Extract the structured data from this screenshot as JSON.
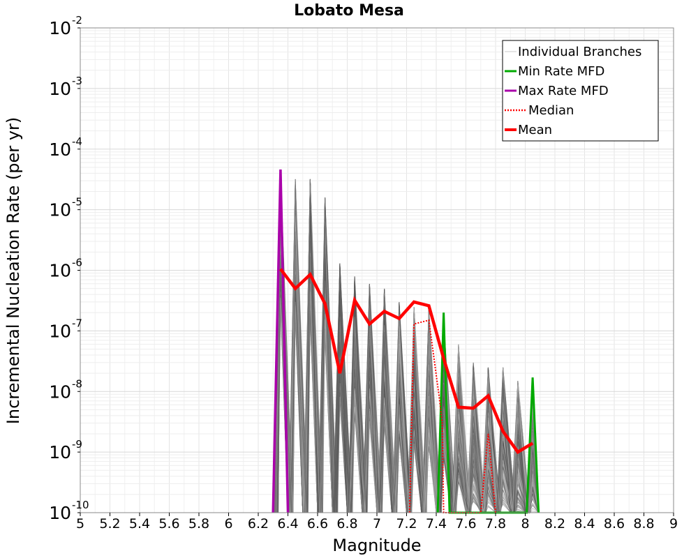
{
  "chart_data": {
    "type": "line",
    "title": "Lobato Mesa",
    "xlabel": "Magnitude",
    "ylabel": "Incremental Nucleation Rate (per yr)",
    "xlim": [
      5,
      9
    ],
    "ylim": [
      1e-10,
      0.01
    ],
    "yscale": "log",
    "xticks": [
      "5",
      "5.2",
      "5.4",
      "5.6",
      "5.8",
      "6",
      "6.2",
      "6.4",
      "6.6",
      "6.8",
      "7",
      "7.2",
      "7.4",
      "7.6",
      "7.8",
      "8",
      "8.2",
      "8.4",
      "8.6",
      "8.8",
      "9"
    ],
    "yticks": [
      {
        "base": "10",
        "exp": "-10",
        "value": 1e-10
      },
      {
        "base": "10",
        "exp": "-9",
        "value": 1e-09
      },
      {
        "base": "10",
        "exp": "-8",
        "value": 1e-08
      },
      {
        "base": "10",
        "exp": "-7",
        "value": 1e-07
      },
      {
        "base": "10",
        "exp": "-6",
        "value": 1e-06
      },
      {
        "base": "10",
        "exp": "-5",
        "value": 1e-05
      },
      {
        "base": "10",
        "exp": "-4",
        "value": 0.0001
      },
      {
        "base": "10",
        "exp": "-3",
        "value": 0.001
      },
      {
        "base": "10",
        "exp": "-2",
        "value": 0.01
      }
    ],
    "grid": true,
    "legend_position": "top-right",
    "legend": [
      {
        "label": "Individual Branches",
        "color": "#c8c8c8",
        "style": "thin"
      },
      {
        "label": "Min Rate MFD",
        "color": "#00aa00",
        "style": "solid"
      },
      {
        "label": "Max Rate MFD",
        "color": "#aa00aa",
        "style": "solid"
      },
      {
        "label": "Median",
        "color": "#ff0000",
        "style": "dotted"
      },
      {
        "label": "Mean",
        "color": "#ff0000",
        "style": "thick"
      }
    ],
    "branch_envelope": {
      "x": [
        6.35,
        6.45,
        6.55,
        6.65,
        6.75,
        6.85,
        6.95,
        7.05,
        7.15,
        7.25,
        7.35,
        7.45,
        7.55,
        7.65,
        7.75,
        7.85,
        7.95,
        8.05
      ],
      "max": [
        4.5e-05,
        3.2e-05,
        3.2e-05,
        1.6e-05,
        1.3e-06,
        8e-07,
        6e-07,
        5e-07,
        3e-07,
        2.5e-07,
        2.3e-07,
        1.5e-07,
        6e-08,
        3e-08,
        2.5e-08,
        2.5e-08,
        1.5e-08,
        1e-08
      ]
    },
    "series": [
      {
        "name": "Mean",
        "x": [
          6.35,
          6.45,
          6.55,
          6.65,
          6.75,
          6.85,
          6.95,
          7.05,
          7.15,
          7.25,
          7.35,
          7.45,
          7.55,
          7.65,
          7.75,
          7.85,
          7.95,
          8.05
        ],
        "values": [
          1.05e-06,
          5e-07,
          8.5e-07,
          2.8e-07,
          2e-08,
          3.2e-07,
          1.3e-07,
          2.1e-07,
          1.6e-07,
          3e-07,
          2.6e-07,
          3.5e-08,
          5.5e-09,
          5.3e-09,
          8.5e-09,
          2.2e-09,
          1e-09,
          1.4e-09
        ]
      },
      {
        "name": "Max Rate MFD",
        "x": [
          6.3,
          6.35,
          6.4
        ],
        "values": [
          1e-10,
          4.6e-05,
          1e-10
        ]
      },
      {
        "name": "Min Rate MFD",
        "x": [
          7.41,
          7.45,
          7.49,
          8.01,
          8.05,
          8.09
        ],
        "values": [
          1e-10,
          2e-07,
          1e-10,
          1e-10,
          1.7e-08,
          1e-10
        ]
      },
      {
        "name": "Median",
        "x": [
          7.22,
          7.25,
          7.35,
          7.42,
          7.44,
          7.45,
          7.46,
          7.5,
          7.7,
          7.75,
          7.8
        ],
        "values": [
          1e-10,
          1.3e-07,
          1.5e-07,
          8e-09,
          3e-09,
          1e-10,
          1e-10,
          1e-10,
          1e-10,
          2e-09,
          1e-10
        ]
      }
    ]
  }
}
